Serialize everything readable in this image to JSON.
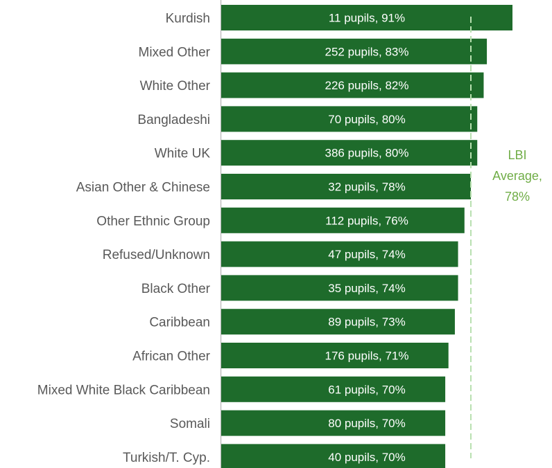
{
  "chart_data": {
    "type": "bar",
    "orientation": "horizontal",
    "categories": [
      "Kurdish",
      "Mixed Other",
      "White Other",
      "Bangladeshi",
      "White UK",
      "Asian Other & Chinese",
      "Other Ethnic Group",
      "Refused/Unknown",
      "Black Other",
      "Caribbean",
      "African Other",
      "Mixed White Black Caribbean",
      "Somali",
      "Turkish/T. Cyp."
    ],
    "values": [
      91,
      83,
      82,
      80,
      80,
      78,
      76,
      74,
      74,
      73,
      71,
      70,
      70,
      70
    ],
    "pupils": [
      11,
      252,
      226,
      70,
      386,
      32,
      112,
      47,
      35,
      89,
      176,
      61,
      80,
      40
    ],
    "data_labels": [
      "11 pupils, 91%",
      "252 pupils, 83%",
      "226 pupils, 82%",
      "70 pupils, 80%",
      "386 pupils, 80%",
      "32 pupils, 78%",
      "112 pupils, 76%",
      "47 pupils, 74%",
      "35 pupils, 74%",
      "89 pupils, 73%",
      "176 pupils, 71%",
      "61 pupils, 70%",
      "80 pupils, 70%",
      "40 pupils, 70%"
    ],
    "xlim": [
      0,
      100
    ],
    "reference_line": {
      "value": 78,
      "label_lines": [
        "LBI",
        "Average,",
        "78%"
      ],
      "style": "dashed"
    },
    "grid": false,
    "legend": "none",
    "colors": {
      "bar": "#1e6b2b",
      "reference": "#70ad47",
      "reference_line": "#b8e0b0",
      "axis": "#bfbfbf",
      "category_text": "#595959"
    }
  }
}
